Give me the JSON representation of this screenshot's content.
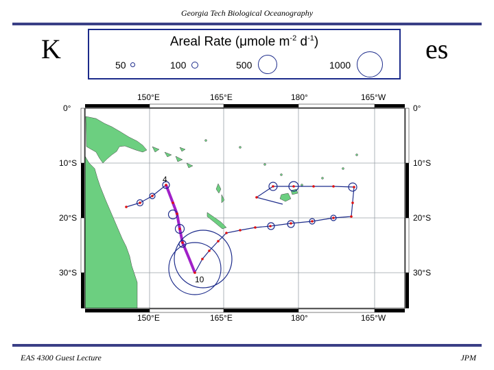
{
  "slide": {
    "header": "Georgia Tech Biological Oceanography",
    "title_fragment_left": "K",
    "title_fragment_right": "es",
    "footer_left": "EAS 4300 Guest Lecture",
    "footer_right": "JPM"
  },
  "legend": {
    "title": "Areal Rate (μmole m",
    "title_exp": "-2",
    "title_mid": " d",
    "title_exp2": "-1",
    "title_end": ")",
    "items": [
      {
        "label": "50",
        "rate": 50
      },
      {
        "label": "100",
        "rate": 100
      },
      {
        "label": "500",
        "rate": 500
      },
      {
        "label": "1000",
        "rate": 1000
      }
    ]
  },
  "map": {
    "lon_labels": [
      "150°E",
      "165°E",
      "180°",
      "165°W"
    ],
    "lat_labels": [
      "0°",
      "10°S",
      "20°S",
      "30°S"
    ],
    "station_labels": [
      "4",
      "10"
    ],
    "colors": {
      "land": "#6ccf80",
      "track": "#1b2a8a",
      "highlight": "#a020c8",
      "station": "#e01010",
      "frame": "#000000"
    },
    "features": [
      "Australia",
      "New Guinea",
      "New Caledonia",
      "Fiji",
      "Solomon Islands",
      "Vanuatu"
    ]
  }
}
